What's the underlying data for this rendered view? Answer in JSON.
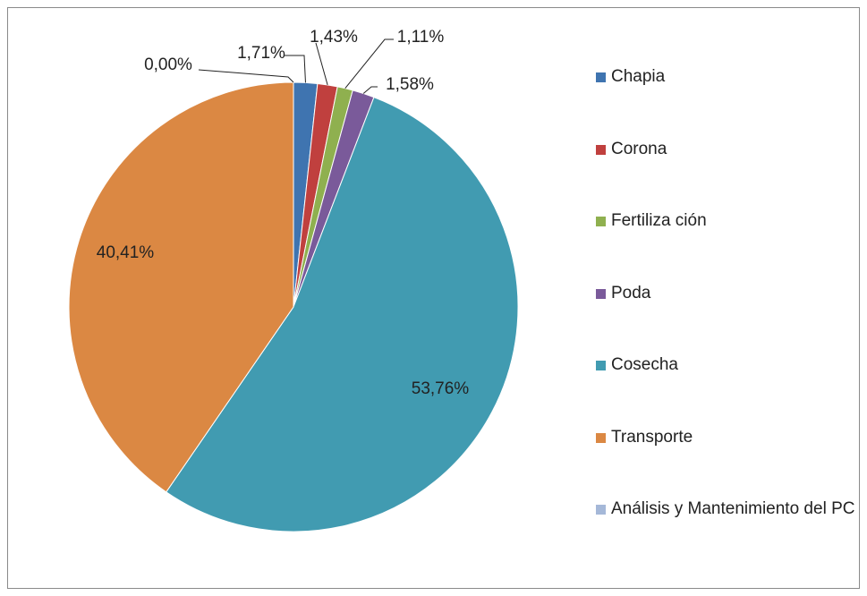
{
  "chart_data": {
    "type": "pie",
    "categories": [
      "Chapia",
      "Corona",
      "Fertiliza ción",
      "Poda",
      "Cosecha",
      "Transporte",
      "Análisis y Mantenimiento del PC"
    ],
    "values": [
      1.71,
      1.43,
      1.11,
      1.58,
      53.76,
      40.41,
      0.0
    ],
    "value_labels": [
      "1,71%",
      "1,43%",
      "1,11%",
      "1,58%",
      "53,76%",
      "40,41%",
      "0,00%"
    ],
    "colors": [
      "#3f74b0",
      "#c0403e",
      "#8fb04f",
      "#7a5a9a",
      "#419bb1",
      "#db8843",
      "#a5b8d8"
    ],
    "legend": "right"
  }
}
